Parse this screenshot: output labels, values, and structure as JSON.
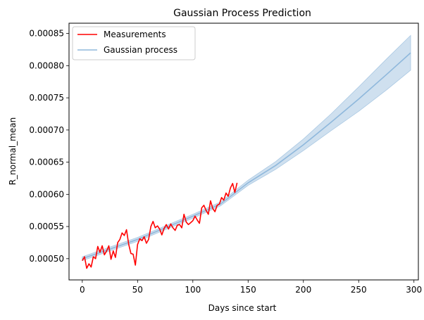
{
  "chart_data": {
    "type": "line",
    "title": "Gaussian Process Prediction",
    "xlabel": "Days since start",
    "ylabel": "R_normal_mean",
    "xlim": [
      -12,
      304
    ],
    "ylim": [
      0.000467,
      0.000866
    ],
    "x_ticks": [
      0,
      50,
      100,
      150,
      200,
      250,
      300
    ],
    "x_tick_labels": [
      "0",
      "50",
      "100",
      "150",
      "200",
      "250",
      "300"
    ],
    "y_ticks": [
      0.0005,
      0.00055,
      0.0006,
      0.00065,
      0.0007,
      0.00075,
      0.0008,
      0.00085
    ],
    "y_tick_labels": [
      "0.00050",
      "0.00055",
      "0.00060",
      "0.00065",
      "0.00070",
      "0.00075",
      "0.00080",
      "0.00085"
    ],
    "grid": false,
    "legend_position": "top-left",
    "series": [
      {
        "name": "Measurements",
        "kind": "line",
        "color": "#ff0000",
        "x": [
          0,
          2,
          4,
          6,
          8,
          10,
          12,
          14,
          16,
          18,
          20,
          22,
          24,
          26,
          28,
          30,
          32,
          34,
          36,
          38,
          40,
          42,
          44,
          46,
          48,
          50,
          52,
          54,
          56,
          58,
          60,
          62,
          64,
          66,
          68,
          70,
          72,
          74,
          76,
          78,
          80,
          82,
          84,
          86,
          88,
          90,
          92,
          94,
          96,
          98,
          100,
          102,
          104,
          106,
          108,
          110,
          112,
          114,
          116,
          118,
          120,
          122,
          124,
          126,
          128,
          130,
          132,
          134,
          136,
          138,
          140
        ],
        "y": [
          0.000497,
          0.000503,
          0.000485,
          0.000492,
          0.000487,
          0.000503,
          0.0005,
          0.000519,
          0.00051,
          0.00052,
          0.000506,
          0.000512,
          0.00052,
          0.000499,
          0.000512,
          0.000502,
          0.000525,
          0.00053,
          0.00054,
          0.000536,
          0.000545,
          0.000522,
          0.000508,
          0.000507,
          0.00049,
          0.000522,
          0.000531,
          0.000528,
          0.000534,
          0.000524,
          0.00053,
          0.00055,
          0.000558,
          0.000548,
          0.000551,
          0.000546,
          0.000537,
          0.000547,
          0.000553,
          0.000546,
          0.000554,
          0.000548,
          0.000544,
          0.000552,
          0.000553,
          0.000548,
          0.000569,
          0.000557,
          0.000553,
          0.000556,
          0.000559,
          0.000566,
          0.00056,
          0.000555,
          0.000579,
          0.000583,
          0.000575,
          0.000569,
          0.00059,
          0.000578,
          0.000573,
          0.000583,
          0.000585,
          0.000595,
          0.000591,
          0.000602,
          0.000597,
          0.00061,
          0.000617,
          0.000603,
          0.000618
        ]
      },
      {
        "name": "Gaussian process",
        "kind": "line_with_band",
        "color": "#8fb8dc",
        "band_color": "#cfe0ef",
        "x": [
          0,
          25,
          50,
          75,
          100,
          125,
          150,
          175,
          200,
          225,
          250,
          275,
          297
        ],
        "y": [
          0.0005,
          0.000515,
          0.00053,
          0.000548,
          0.000566,
          0.000585,
          0.000618,
          0.000645,
          0.000677,
          0.000712,
          0.000748,
          0.000786,
          0.00082
        ],
        "lower": [
          0.000497,
          0.000512,
          0.000527,
          0.000545,
          0.000563,
          0.000582,
          0.000614,
          0.000639,
          0.000668,
          0.000699,
          0.000729,
          0.000762,
          0.000793
        ],
        "upper": [
          0.000503,
          0.000518,
          0.000533,
          0.000551,
          0.000569,
          0.000588,
          0.000622,
          0.000651,
          0.000686,
          0.000725,
          0.000767,
          0.00081,
          0.000847
        ]
      }
    ]
  }
}
